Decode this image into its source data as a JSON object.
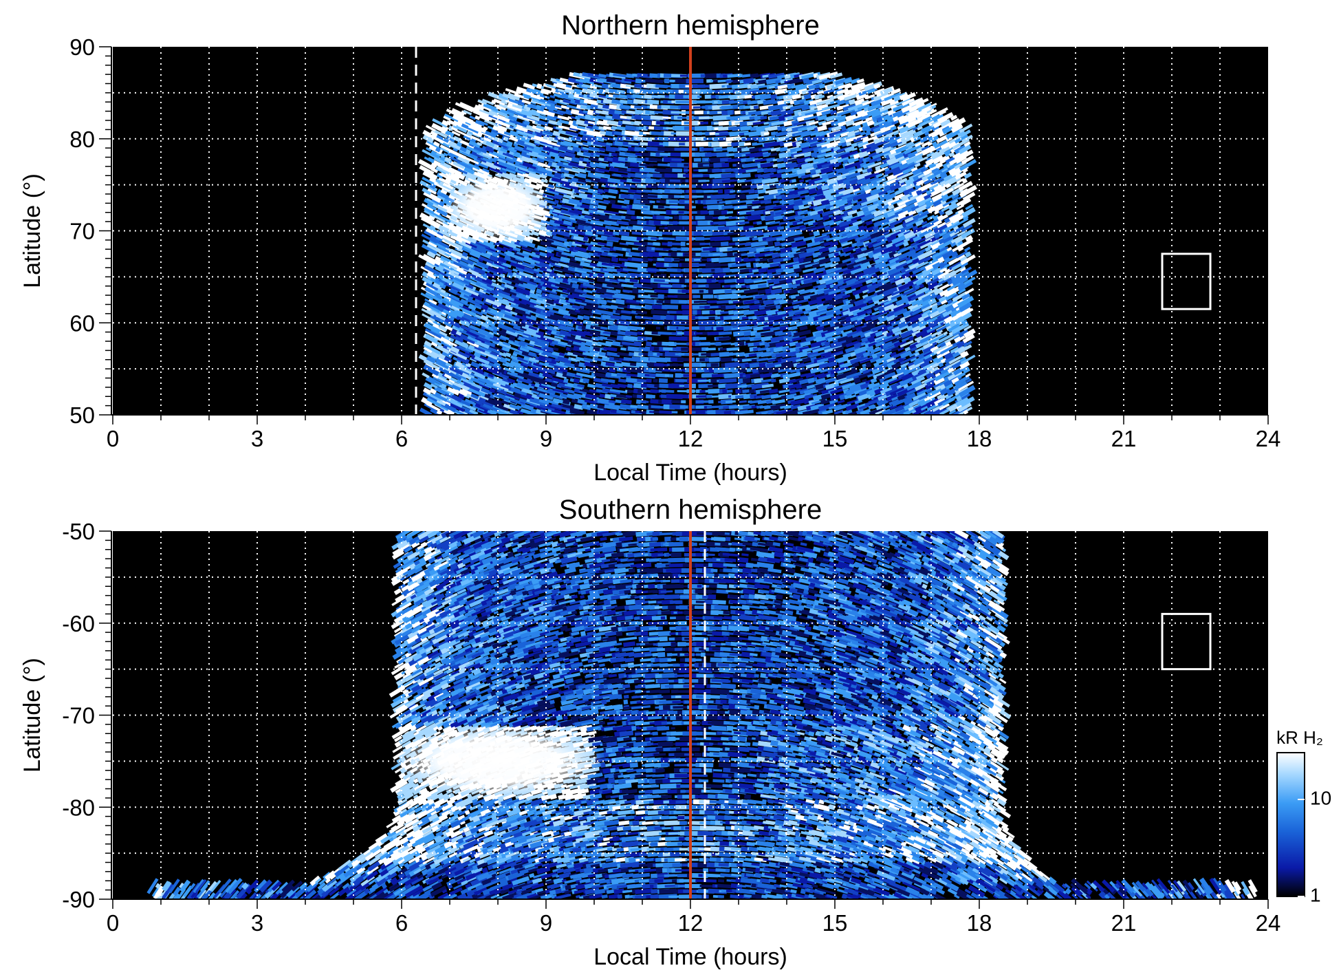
{
  "chart_data": [
    {
      "type": "heatmap",
      "title": "Northern hemisphere",
      "xlabel": "Local Time (hours)",
      "ylabel": "Latitude (°)",
      "xlim": [
        0,
        24
      ],
      "ylim": [
        50,
        90
      ],
      "xticks": [
        0,
        3,
        6,
        9,
        12,
        15,
        18,
        21,
        24
      ],
      "xtick_labels": [
        "0",
        "3",
        "6",
        "9",
        "12",
        "15",
        "18",
        "21",
        "24"
      ],
      "yticks": [
        50,
        60,
        70,
        80,
        90
      ],
      "ytick_labels": [
        "50",
        "60",
        "70",
        "80",
        "90"
      ],
      "grid": true,
      "noon_line_hours": 12,
      "dashed_line_hours": 6.3,
      "coverage_lt_range": [
        6.5,
        17.8
      ],
      "max_latitude": 87,
      "bright_oval_region": {
        "lt": [
          7,
          9
        ],
        "lat": [
          69,
          76
        ]
      },
      "box": {
        "lt": [
          21.8,
          22.8
        ],
        "lat": [
          61.5,
          67.5
        ]
      }
    },
    {
      "type": "heatmap",
      "title": "Southern hemisphere",
      "xlabel": "Local Time (hours)",
      "ylabel": "Latitude (°)",
      "xlim": [
        0,
        24
      ],
      "ylim": [
        -90,
        -50
      ],
      "xticks": [
        0,
        3,
        6,
        9,
        12,
        15,
        18,
        21,
        24
      ],
      "xtick_labels": [
        "0",
        "3",
        "6",
        "9",
        "12",
        "15",
        "18",
        "21",
        "24"
      ],
      "yticks": [
        -90,
        -80,
        -70,
        -60,
        -50
      ],
      "ytick_labels": [
        "-90",
        "-80",
        "-70",
        "-60",
        "-50"
      ],
      "grid": true,
      "noon_line_hours": 12,
      "dashed_line_hours": 12.3,
      "coverage_lt_range": [
        5.9,
        18.5
      ],
      "bright_oval_region": {
        "lt": [
          6,
          10
        ],
        "lat": [
          -79,
          -71
        ]
      },
      "box": {
        "lt": [
          21.8,
          22.8
        ],
        "lat": [
          -65,
          -59
        ]
      }
    }
  ],
  "colorbar": {
    "title": "kR H₂",
    "scale": "log",
    "range": [
      1,
      30
    ],
    "tick_labels": [
      "1",
      "10"
    ],
    "colors": [
      "#000000",
      "#0a1aa8",
      "#1a63d8",
      "#3b9cf5",
      "#a6d8ff",
      "#ffffff"
    ]
  }
}
